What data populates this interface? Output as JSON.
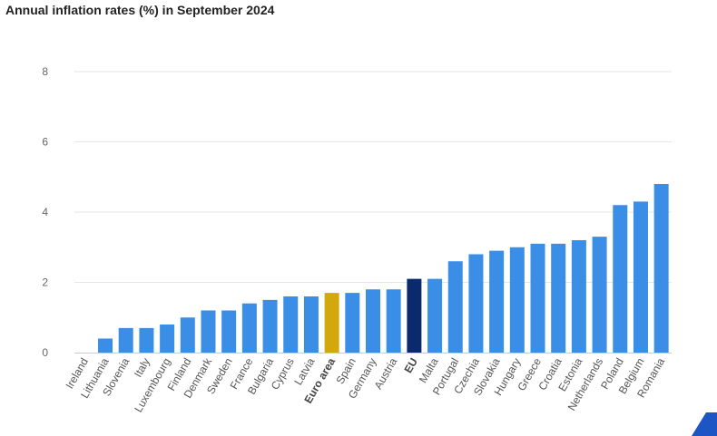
{
  "colors": {
    "default_bar": "#3a8ee6",
    "euro_area_bar": "#d3a80c",
    "eu_bar": "#0b2a6b",
    "gridline": "#e6e6e6",
    "axis_line": "#cccccc",
    "logo": "#1d55c4"
  },
  "logo_icon": "corner-triangle-logo-icon",
  "chart_data": {
    "type": "bar",
    "title": "Annual inflation rates (%) in September 2024",
    "xlabel": "",
    "ylabel": "",
    "ylim": [
      0,
      8
    ],
    "yticks": [
      0,
      2,
      4,
      6,
      8
    ],
    "grid": true,
    "legend": "none",
    "categories": [
      "Ireland",
      "Lithuania",
      "Slovenia",
      "Italy",
      "Luxembourg",
      "Finland",
      "Denmark",
      "Sweden",
      "France",
      "Bulgaria",
      "Cyprus",
      "Latvia",
      "Euro area",
      "Spain",
      "Germany",
      "Austria",
      "EU",
      "Malta",
      "Portugal",
      "Czechia",
      "Slovakia",
      "Hungary",
      "Greece",
      "Croatia",
      "Estonia",
      "Netherlands",
      "Poland",
      "Belgium",
      "Romania"
    ],
    "values": [
      0.0,
      0.4,
      0.7,
      0.7,
      0.8,
      1.0,
      1.2,
      1.2,
      1.4,
      1.5,
      1.6,
      1.6,
      1.7,
      1.7,
      1.8,
      1.8,
      2.1,
      2.1,
      2.6,
      2.8,
      2.9,
      3.0,
      3.1,
      3.1,
      3.2,
      3.3,
      4.2,
      4.3,
      4.8
    ],
    "highlighted_categories": {
      "Euro area": "euro_area_bar",
      "EU": "eu_bar"
    },
    "bold_labels": [
      "Euro area",
      "EU"
    ]
  }
}
